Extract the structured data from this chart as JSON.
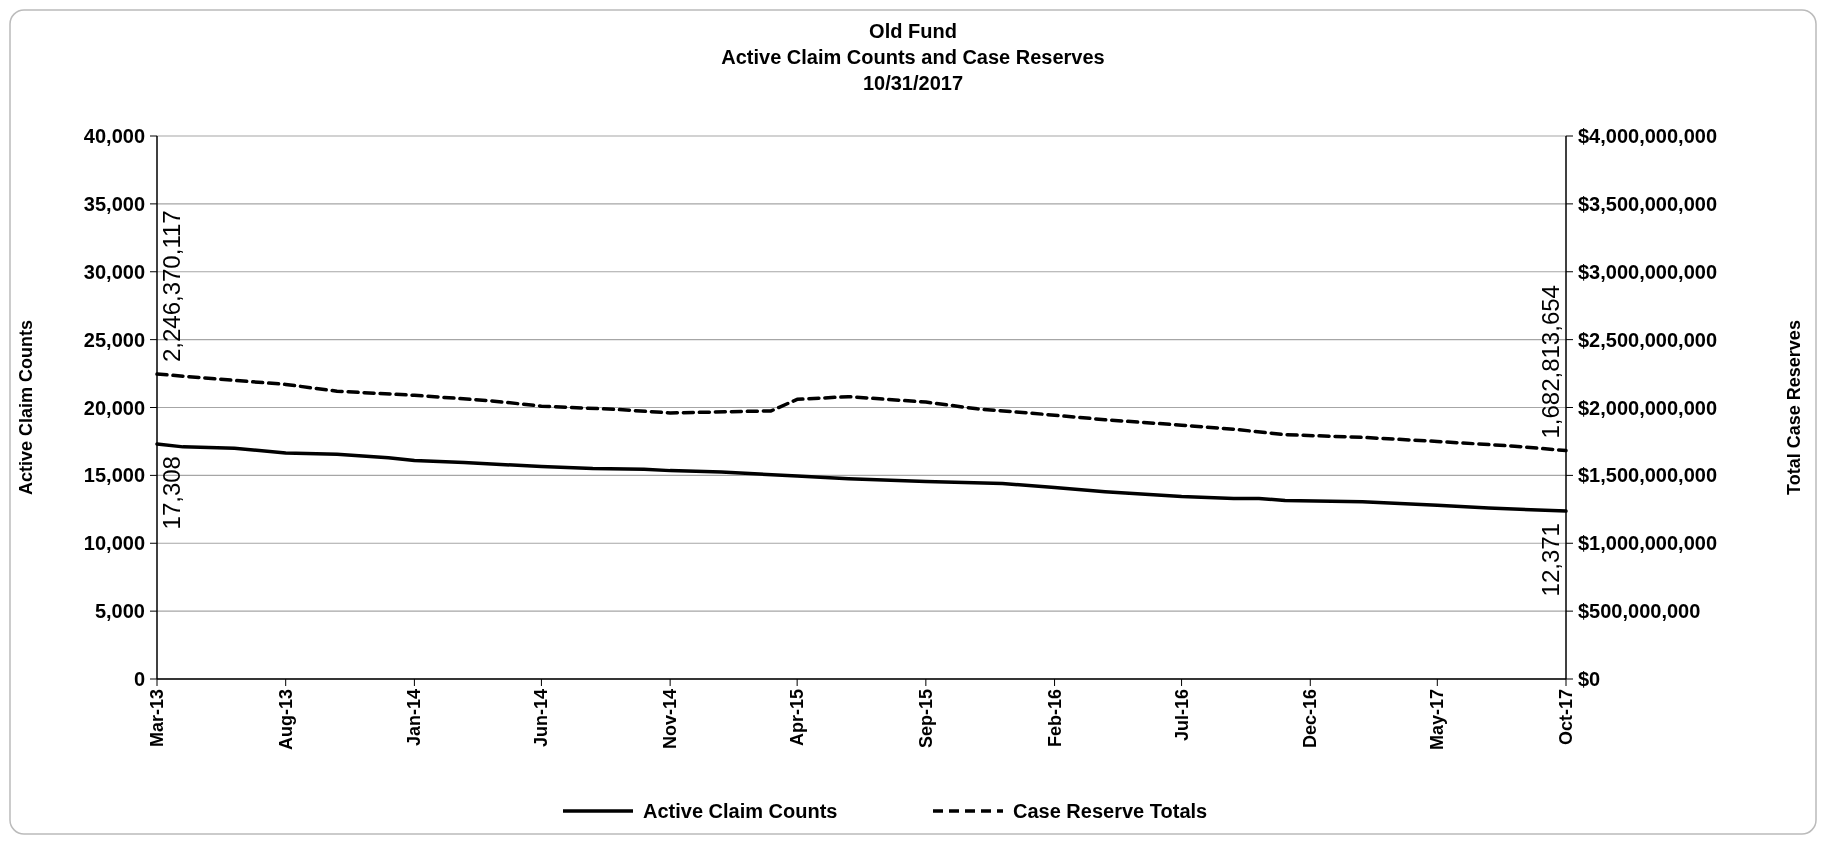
{
  "chart_data": {
    "type": "line",
    "title": "Old Fund\nActive Claim Counts and Case Reserves\n10/31/2017",
    "ylabel": "Active Claim Counts",
    "y2label": "Total Case Reserves",
    "xlim": [
      "2013-03",
      "2017-10"
    ],
    "xticks": [
      {
        "value": "2013-03",
        "label": "Mar-13"
      },
      {
        "value": "2013-08",
        "label": "Aug-13"
      },
      {
        "value": "2014-01",
        "label": "Jan-14"
      },
      {
        "value": "2014-06",
        "label": "Jun-14"
      },
      {
        "value": "2014-11",
        "label": "Nov-14"
      },
      {
        "value": "2015-04",
        "label": "Apr-15"
      },
      {
        "value": "2015-09",
        "label": "Sep-15"
      },
      {
        "value": "2016-02",
        "label": "Feb-16"
      },
      {
        "value": "2016-07",
        "label": "Jul-16"
      },
      {
        "value": "2016-12",
        "label": "Dec-16"
      },
      {
        "value": "2017-05",
        "label": "May-17"
      },
      {
        "value": "2017-10",
        "label": "Oct-17"
      }
    ],
    "ylim": [
      0,
      40000
    ],
    "yticks": [
      0,
      {
        "value": 5000,
        "label": "5,000"
      },
      {
        "value": 10000,
        "label": "10,000"
      },
      {
        "value": 15000,
        "label": "15,000"
      },
      {
        "value": 20000,
        "label": "20,000"
      },
      {
        "value": 25000,
        "label": "25,000"
      },
      {
        "value": 30000,
        "label": "30,000"
      },
      {
        "value": 35000,
        "label": "35,000"
      },
      {
        "value": 40000,
        "label": "40,000"
      }
    ],
    "y2lim": [
      0,
      4000000000
    ],
    "y2ticks": [
      {
        "value": 0,
        "label": "$0"
      },
      {
        "value": 500000000,
        "label": "$500,000,000"
      },
      {
        "value": 1000000000,
        "label": "$1,000,000,000"
      },
      {
        "value": 1500000000,
        "label": "$1,500,000,000"
      },
      {
        "value": 2000000000,
        "label": "$2,000,000,000"
      },
      {
        "value": 2500000000,
        "label": "$2,500,000,000"
      },
      {
        "value": 3000000000,
        "label": "$3,000,000,000"
      },
      {
        "value": 3500000000,
        "label": "$3,500,000,000"
      },
      {
        "value": 4000000000,
        "label": "$4,000,000,000"
      }
    ],
    "grid": "y",
    "legend": "bottom",
    "marker": "none",
    "series": [
      {
        "name": "Active Claim Counts",
        "color": "#000000",
        "line_style": "solid",
        "x": [
          "2013-03",
          "2013-04",
          "2013-06",
          "2013-08",
          "2013-10",
          "2013-12",
          "2014-01",
          "2014-03",
          "2014-06",
          "2014-08",
          "2014-10",
          "2014-11",
          "2015-01",
          "2015-04",
          "2015-06",
          "2015-09",
          "2015-12",
          "2016-02",
          "2016-04",
          "2016-07",
          "2016-09",
          "2016-10",
          "2016-11",
          "2017-02",
          "2017-05",
          "2017-07",
          "2017-10"
        ],
        "values": [
          17308,
          17100,
          17000,
          16650,
          16550,
          16300,
          16100,
          15950,
          15650,
          15500,
          15450,
          15350,
          15250,
          14950,
          14750,
          14550,
          14400,
          14100,
          13800,
          13450,
          13300,
          13300,
          13150,
          13050,
          12800,
          12600,
          12371
        ],
        "value_labels": [
          "17,308",
          null,
          null,
          null,
          null,
          null,
          null,
          null,
          null,
          null,
          null,
          null,
          null,
          null,
          null,
          null,
          null,
          null,
          null,
          null,
          null,
          null,
          null,
          null,
          null,
          null,
          "12,371"
        ]
      },
      {
        "name": "Case Reserve Totals",
        "color": "#000000",
        "line_style": "dashed",
        "axis": "y2",
        "x": [
          "2013-03",
          "2013-06",
          "2013-08",
          "2013-10",
          "2014-01",
          "2014-04",
          "2014-06",
          "2014-09",
          "2014-11",
          "2015-03",
          "2015-04",
          "2015-06",
          "2015-09",
          "2015-11",
          "2016-01",
          "2016-04",
          "2016-07",
          "2016-09",
          "2016-11",
          "2017-02",
          "2017-05",
          "2017-08",
          "2017-10"
        ],
        "values": [
          2246370117,
          2200000000,
          2170000000,
          2120000000,
          2090000000,
          2050000000,
          2010000000,
          1985000000,
          1960000000,
          1975000000,
          2060000000,
          2080000000,
          2040000000,
          1990000000,
          1960000000,
          1910000000,
          1870000000,
          1840000000,
          1800000000,
          1780000000,
          1750000000,
          1715000000,
          1682813654
        ],
        "value_labels": [
          "2,246,370,117",
          null,
          null,
          null,
          null,
          null,
          null,
          null,
          null,
          null,
          null,
          null,
          null,
          null,
          null,
          null,
          null,
          null,
          null,
          null,
          null,
          null,
          "1,682,813,654"
        ]
      }
    ]
  }
}
